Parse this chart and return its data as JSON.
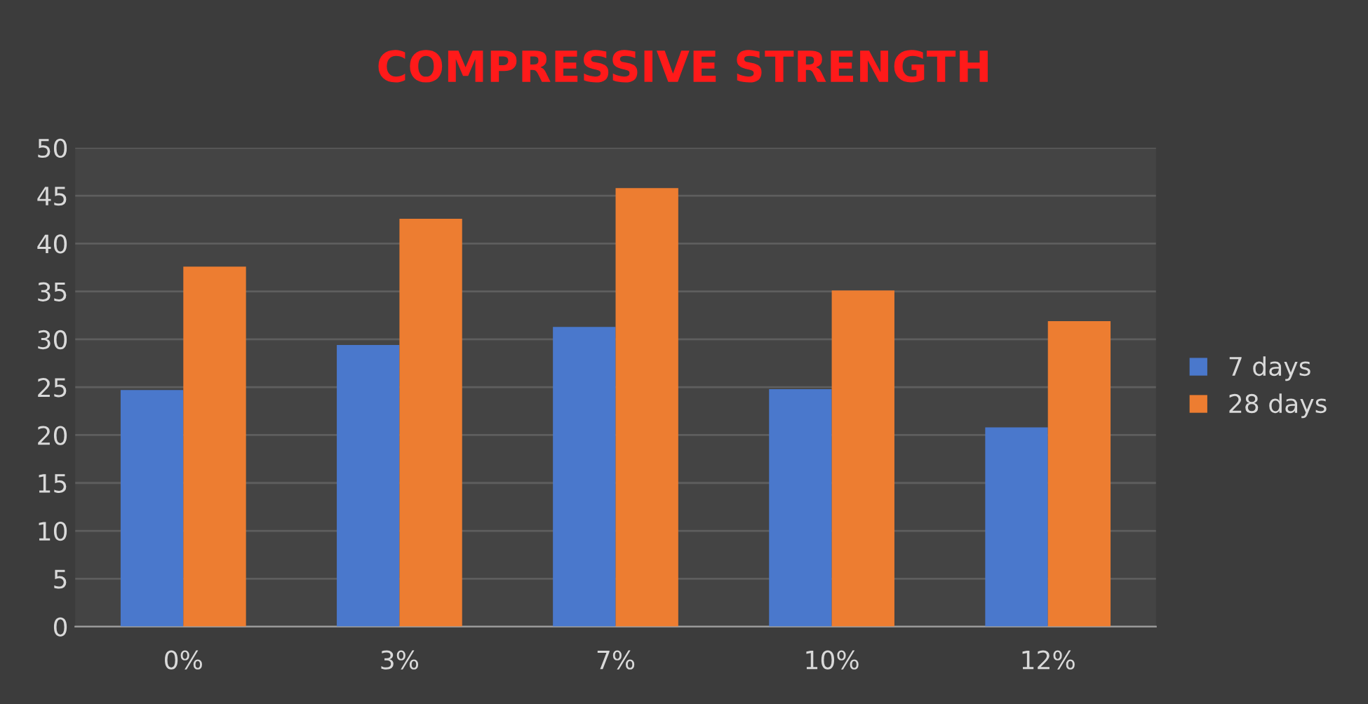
{
  "chart_data": {
    "type": "bar",
    "title": "COMPRESSIVE STRENGTH",
    "categories": [
      "0%",
      "3%",
      "7%",
      "10%",
      "12%"
    ],
    "series": [
      {
        "name": "7 days",
        "color": "#4a78cc",
        "values": [
          24.7,
          29.4,
          31.3,
          24.8,
          20.8
        ]
      },
      {
        "name": "28 days",
        "color": "#ed7d31",
        "values": [
          37.6,
          42.6,
          45.8,
          35.1,
          31.9
        ]
      }
    ],
    "ylim": [
      0,
      50
    ],
    "yticks": [
      0,
      5,
      10,
      15,
      20,
      25,
      30,
      35,
      40,
      45,
      50
    ],
    "grid": "y",
    "legend": "right"
  }
}
